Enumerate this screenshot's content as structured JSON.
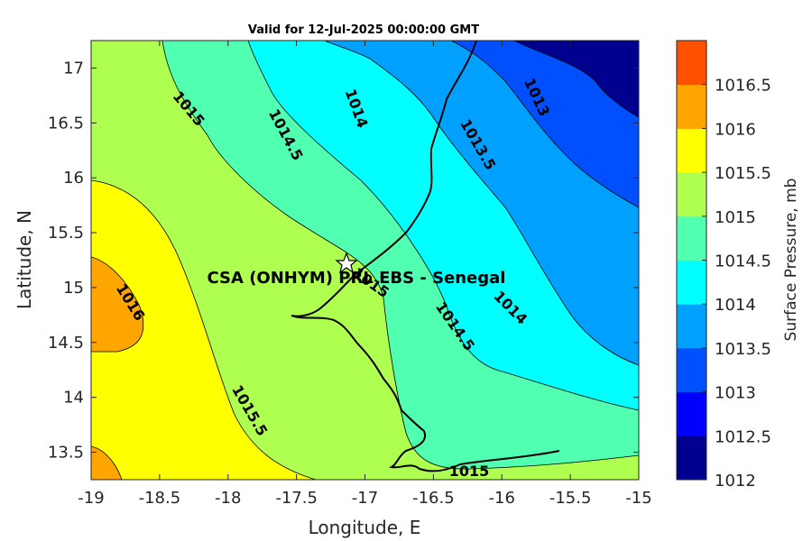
{
  "title": "Valid for 12-Jul-2025 00:00:00 GMT",
  "station_label": "CSA (ONHYM) PRL EBS  - Senegal",
  "xaxis": {
    "label": "Longitude, E",
    "ticks": [
      "-19",
      "-18.5",
      "-18",
      "-17.5",
      "-17",
      "-16.5",
      "-16",
      "-15.5",
      "-15"
    ],
    "range": [
      -19,
      -15
    ]
  },
  "yaxis": {
    "label": "Latitude, N",
    "ticks": [
      "13.5",
      "14",
      "14.5",
      "15",
      "15.5",
      "16",
      "16.5",
      "17"
    ],
    "range": [
      13.25,
      17.25
    ]
  },
  "colorbar": {
    "label": "Surface Pressure, mb",
    "ticks": [
      "1012",
      "1012.5",
      "1013",
      "1013.5",
      "1014",
      "1014.5",
      "1015",
      "1015.5",
      "1016",
      "1016.5"
    ],
    "colors": [
      "#00008F",
      "#0000FF",
      "#0050FF",
      "#00A0FF",
      "#00FFFF",
      "#50FFB0",
      "#AFFF50",
      "#FFFF00",
      "#FFA500",
      "#FF5000"
    ]
  },
  "contour_labels": [
    "1015",
    "1014.5",
    "1014",
    "1013.5",
    "1013",
    "1016",
    "1015",
    "1014.5",
    "1014",
    "1015.5",
    "1015"
  ]
}
